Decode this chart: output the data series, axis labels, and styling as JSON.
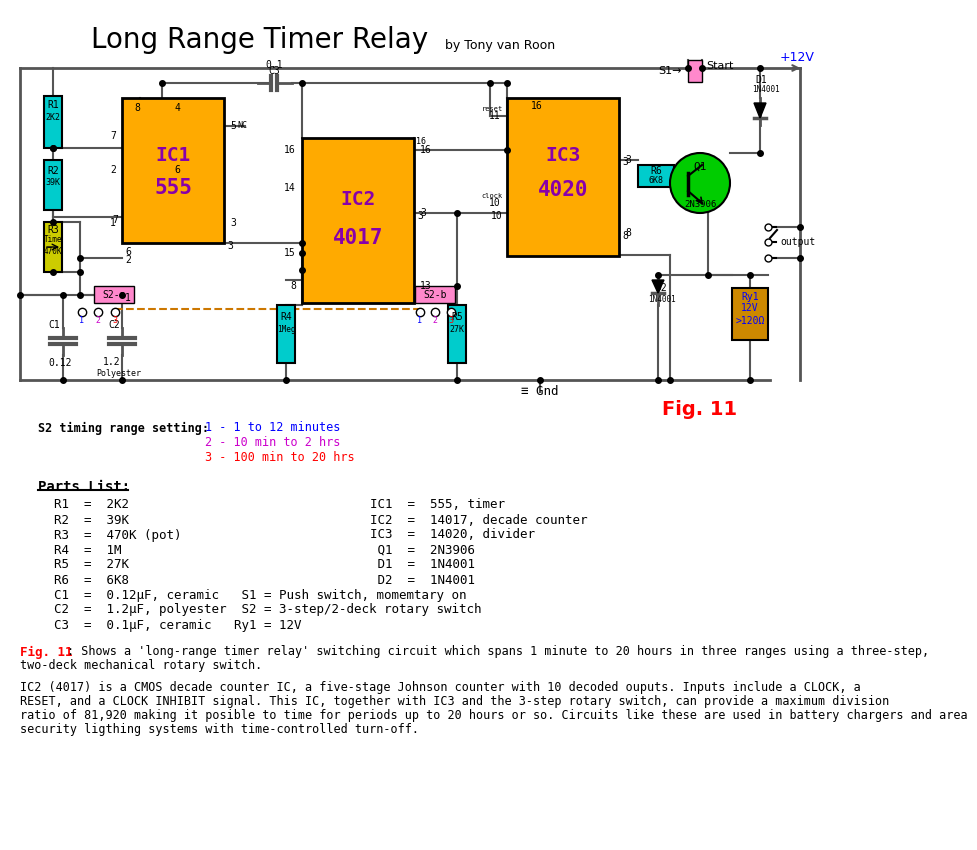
{
  "title": "Long Range Timer Relay",
  "subtitle": "by Tony van Roon",
  "fig_label": "Fig. 11",
  "bg_color": "#ffffff",
  "title_color": "#000000",
  "subtitle_color": "#000000",
  "fig_label_color": "#ff0000",
  "ic_fill_color": "#ffaa00",
  "ic_text_color": "#8800aa",
  "ic1_label": "IC1",
  "ic1_sublabel": "555",
  "ic2_label": "IC2",
  "ic2_sublabel": "4017",
  "ic3_label": "IC3",
  "ic3_sublabel": "4020",
  "wire_color": "#444444",
  "r1_color": "#00cccc",
  "r2_color": "#00cccc",
  "r3_color": "#cccc00",
  "r4_color": "#00cccc",
  "r5_color": "#00cccc",
  "r6_color": "#00cccc",
  "s2a_color": "#ff88cc",
  "s2b_color": "#ff88cc",
  "transistor_color": "#00cc00",
  "relay_color": "#cc8800",
  "vcc_label": "+12V",
  "gnd_label": "Gnd",
  "parts_list_title": "Parts List:",
  "timing_label": "S2 timing range setting:",
  "timing_1": "1 - 1 to 12 minutes",
  "timing_2": "2 - 10 min to 2 hrs",
  "timing_3": "3 - 100 min to 20 hrs",
  "col1_parts": [
    "R1  =  2K2",
    "R2  =  39K",
    "R3  =  470K (pot)",
    "R4  =  1M",
    "R5  =  27K",
    "R6  =  6K8"
  ],
  "col2_parts": [
    "IC1  =  555, timer",
    "IC2  =  14017, decade counter",
    "IC3  =  14020, divider",
    " Q1  =  2N3906",
    " D1  =  1N4001",
    " D2  =  1N4001"
  ],
  "bottom_parts": [
    "C1  =  0.12μF, ceramic   S1 = Push switch, momemtary on",
    "C2  =  1.2μF, polyester  S2 = 3-step/2-deck rotary switch",
    "C3  =  0.1μF, ceramic   Ry1 = 12V"
  ],
  "fig11_line1": "Fig. 11",
  "fig11_line1b": ": Shows a 'long-range timer relay' switching circuit which spans 1 minute to 20 hours in three ranges using a three-step,",
  "fig11_line2": "two-deck mechanical rotary switch.",
  "ic2_desc": [
    "IC2 (4017) is a CMOS decade counter IC, a five-stage Johnson counter with 10 decoded ouputs. Inputs include a CLOCK, a",
    "RESET, and a CLOCK INHIBIT signal. This IC, together with IC3 and the 3-step rotary switch, can provide a maximum division",
    "ratio of 81,920 making it posible to time for periods up to 20 hours or so. Circuits like these are used in battery chargers and area",
    "security ligthing systems with time-controlled turn-off."
  ]
}
